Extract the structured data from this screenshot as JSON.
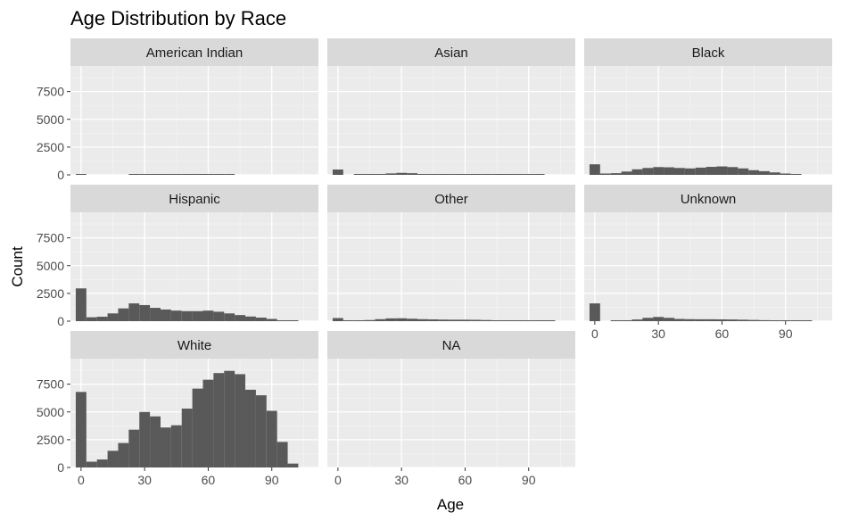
{
  "chart_data": {
    "type": "bar",
    "subtype": "faceted-histogram",
    "title": "Age Distribution by Race",
    "xlabel": "Age",
    "ylabel": "Count",
    "xlim": [
      -5,
      112
    ],
    "ylim": [
      0,
      9800
    ],
    "x_ticks": [
      0,
      30,
      60,
      90
    ],
    "y_ticks": [
      0,
      2500,
      5000,
      7500
    ],
    "grid": true,
    "bin_width": 5,
    "bin_starts": [
      -2.5,
      2.5,
      7.5,
      12.5,
      17.5,
      22.5,
      27.5,
      32.5,
      37.5,
      42.5,
      47.5,
      52.5,
      57.5,
      62.5,
      67.5,
      72.5,
      77.5,
      82.5,
      87.5,
      92.5,
      97.5,
      102.5
    ],
    "facets": [
      {
        "name": "American Indian",
        "values": [
          70,
          0,
          0,
          0,
          0,
          30,
          40,
          40,
          40,
          30,
          30,
          30,
          30,
          30,
          30,
          0,
          0,
          0,
          0,
          0,
          0,
          0
        ]
      },
      {
        "name": "Asian",
        "values": [
          480,
          0,
          30,
          50,
          80,
          130,
          180,
          150,
          80,
          70,
          70,
          60,
          60,
          50,
          50,
          40,
          40,
          30,
          20,
          20,
          0,
          0
        ]
      },
      {
        "name": "Black",
        "values": [
          950,
          120,
          150,
          300,
          500,
          620,
          700,
          680,
          620,
          580,
          650,
          720,
          760,
          700,
          580,
          420,
          330,
          220,
          120,
          40,
          0,
          0
        ]
      },
      {
        "name": "Hispanic",
        "values": [
          2950,
          350,
          400,
          700,
          1150,
          1600,
          1450,
          1200,
          1050,
          950,
          900,
          900,
          950,
          850,
          700,
          550,
          420,
          320,
          200,
          80,
          40,
          0
        ]
      },
      {
        "name": "Other",
        "values": [
          280,
          60,
          60,
          100,
          180,
          250,
          260,
          220,
          180,
          160,
          140,
          130,
          130,
          120,
          100,
          80,
          60,
          40,
          20,
          10,
          10,
          0
        ]
      },
      {
        "name": "Unknown",
        "values": [
          1600,
          0,
          30,
          60,
          150,
          300,
          380,
          300,
          200,
          180,
          170,
          170,
          160,
          150,
          130,
          110,
          90,
          60,
          40,
          20,
          10,
          0
        ]
      },
      {
        "name": "White",
        "values": [
          6800,
          520,
          720,
          1500,
          2200,
          3400,
          5000,
          4600,
          3600,
          3800,
          5300,
          7100,
          7900,
          8500,
          8700,
          8400,
          7000,
          6500,
          5100,
          2300,
          350,
          0
        ]
      },
      {
        "name": "NA",
        "values": [
          0,
          0,
          0,
          0,
          0,
          0,
          0,
          0,
          0,
          0,
          0,
          0,
          0,
          0,
          0,
          0,
          0,
          0,
          0,
          0,
          0,
          0
        ]
      }
    ]
  }
}
